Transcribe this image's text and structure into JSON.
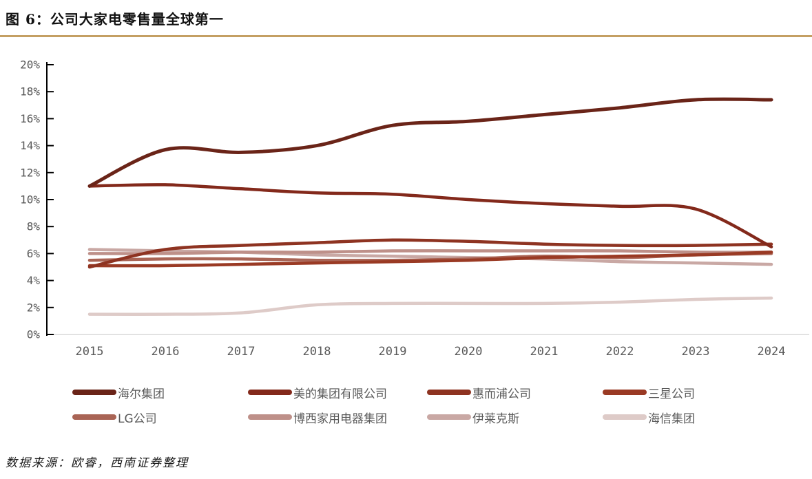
{
  "figure": {
    "title": "图 6：公司大家电零售量全球第一",
    "source_note": "数据来源：欧睿，西南证券整理",
    "accent_color": "#C49F63"
  },
  "chart_data": {
    "type": "line",
    "x": [
      2015,
      2016,
      2017,
      2018,
      2019,
      2020,
      2021,
      2022,
      2023,
      2024
    ],
    "x_tick_labels": [
      "2015",
      "2016",
      "2017",
      "2018",
      "2019",
      "2020",
      "2021",
      "2022",
      "2023",
      "2024"
    ],
    "ylim": [
      0,
      20
    ],
    "y_ticks": [
      0,
      2,
      4,
      6,
      8,
      10,
      12,
      14,
      16,
      18,
      20
    ],
    "y_tick_labels": [
      "0%",
      "2%",
      "4%",
      "6%",
      "8%",
      "10%",
      "12%",
      "14%",
      "16%",
      "18%",
      "20%"
    ],
    "grid": false,
    "legend_position": "bottom",
    "axis_color": "#000000",
    "baseline_color": "#D9D9D9",
    "tick_label_color": "#595959",
    "series": [
      {
        "name": "海尔集团",
        "color": "#6A2418",
        "values": [
          11.0,
          13.7,
          13.5,
          14.0,
          15.5,
          15.8,
          16.3,
          16.8,
          17.4,
          17.4
        ]
      },
      {
        "name": "美的集团有限公司",
        "color": "#83291B",
        "values": [
          11.0,
          11.1,
          10.8,
          10.5,
          10.4,
          10.0,
          9.7,
          9.5,
          9.3,
          6.5
        ]
      },
      {
        "name": "惠而浦公司",
        "color": "#8E3321",
        "values": [
          5.0,
          6.3,
          6.6,
          6.8,
          7.0,
          6.9,
          6.7,
          6.6,
          6.6,
          6.7
        ]
      },
      {
        "name": "三星公司",
        "color": "#9A3A24",
        "values": [
          5.1,
          5.1,
          5.2,
          5.3,
          5.4,
          5.5,
          5.7,
          5.8,
          5.9,
          6.1
        ]
      },
      {
        "name": "LG公司",
        "color": "#A96455",
        "values": [
          5.5,
          5.6,
          5.6,
          5.5,
          5.5,
          5.6,
          5.8,
          5.7,
          5.9,
          6.0
        ]
      },
      {
        "name": "博西家用电器集团",
        "color": "#BE9089",
        "values": [
          6.0,
          6.0,
          6.1,
          6.1,
          6.2,
          6.2,
          6.2,
          6.2,
          6.1,
          6.1
        ]
      },
      {
        "name": "伊莱克斯",
        "color": "#C9A8A4",
        "values": [
          6.3,
          6.2,
          6.1,
          5.9,
          5.8,
          5.7,
          5.6,
          5.4,
          5.3,
          5.2
        ]
      },
      {
        "name": "海信集团",
        "color": "#DECBC8",
        "values": [
          1.5,
          1.5,
          1.6,
          2.2,
          2.3,
          2.3,
          2.3,
          2.4,
          2.6,
          2.7
        ]
      }
    ]
  }
}
